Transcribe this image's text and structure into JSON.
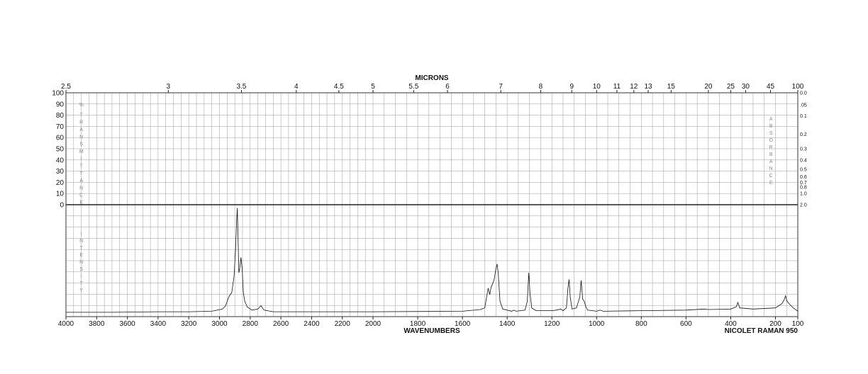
{
  "chart_data": {
    "type": "line",
    "title": "MICRONS",
    "xlabel": "WAVENUMBERS",
    "instrument": "NICOLET RAMAN 950",
    "x_range": [
      4000,
      100
    ],
    "x_ticks": [
      4000,
      3800,
      3600,
      3400,
      3200,
      3000,
      2800,
      2600,
      2400,
      2200,
      2000,
      1800,
      1600,
      1400,
      1200,
      1000,
      800,
      600,
      400,
      200,
      100
    ],
    "micron_ticks": [
      {
        "label": "2.5",
        "um": 2.5
      },
      {
        "label": "3",
        "um": 3
      },
      {
        "label": "3.5",
        "um": 3.5
      },
      {
        "label": "4",
        "um": 4
      },
      {
        "label": "4.5",
        "um": 4.5
      },
      {
        "label": "5",
        "um": 5
      },
      {
        "label": "5.5",
        "um": 5.5
      },
      {
        "label": "6",
        "um": 6
      },
      {
        "label": "7",
        "um": 7
      },
      {
        "label": "8",
        "um": 8
      },
      {
        "label": "9",
        "um": 9
      },
      {
        "label": "10",
        "um": 10
      },
      {
        "label": "11",
        "um": 11
      },
      {
        "label": "12",
        "um": 12
      },
      {
        "label": "13",
        "um": 13
      },
      {
        "label": "15",
        "um": 15
      },
      {
        "label": "20",
        "um": 20
      },
      {
        "label": "25",
        "um": 25
      },
      {
        "label": "30",
        "um": 30
      },
      {
        "label": "45",
        "um": 45
      },
      {
        "label": "100",
        "um": 100
      }
    ],
    "transmittance_ticks": [
      100,
      90,
      80,
      70,
      60,
      50,
      40,
      30,
      20,
      10,
      0
    ],
    "transmittance_label": "% TRANSMITTANCE",
    "absorbance_label": "ABSORBANCE",
    "absorbance_ticks": [
      {
        "label": "0.0",
        "a": 0.0
      },
      {
        "label": ".05",
        "a": 0.05
      },
      {
        "label": "0.1",
        "a": 0.1
      },
      {
        "label": "0.2",
        "a": 0.2
      },
      {
        "label": "0.3",
        "a": 0.3
      },
      {
        "label": "0.4",
        "a": 0.4
      },
      {
        "label": "0.5",
        "a": 0.5
      },
      {
        "label": "0.6",
        "a": 0.6
      },
      {
        "label": "0.7",
        "a": 0.7
      },
      {
        "label": "0.8",
        "a": 0.8
      },
      {
        "label": "1.0",
        "a": 1.0
      },
      {
        "label": "2.0",
        "a": 2.0
      }
    ],
    "intensity_label": "INTENSITY",
    "intensity_range": [
      0,
      100
    ],
    "series": [
      {
        "baseline": 2,
        "points": [
          [
            4000,
            2
          ],
          [
            3700,
            2
          ],
          [
            3400,
            2.5
          ],
          [
            3200,
            2.5
          ],
          [
            3050,
            3
          ],
          [
            2980,
            5
          ],
          [
            2960,
            8
          ],
          [
            2945,
            14
          ],
          [
            2935,
            17
          ],
          [
            2920,
            20
          ],
          [
            2905,
            35
          ],
          [
            2895,
            60
          ],
          [
            2888,
            85
          ],
          [
            2884,
            97
          ],
          [
            2880,
            75
          ],
          [
            2874,
            38
          ],
          [
            2868,
            42
          ],
          [
            2860,
            52
          ],
          [
            2852,
            42
          ],
          [
            2845,
            20
          ],
          [
            2835,
            12
          ],
          [
            2820,
            7
          ],
          [
            2790,
            4
          ],
          [
            2750,
            5
          ],
          [
            2730,
            8
          ],
          [
            2710,
            4
          ],
          [
            2650,
            2.5
          ],
          [
            2400,
            2.5
          ],
          [
            2000,
            2.5
          ],
          [
            1750,
            2.8
          ],
          [
            1600,
            3
          ],
          [
            1520,
            4.5
          ],
          [
            1500,
            6
          ],
          [
            1492,
            16
          ],
          [
            1485,
            24
          ],
          [
            1478,
            18
          ],
          [
            1472,
            25
          ],
          [
            1465,
            28
          ],
          [
            1458,
            32
          ],
          [
            1450,
            42
          ],
          [
            1445,
            46
          ],
          [
            1440,
            38
          ],
          [
            1432,
            12
          ],
          [
            1420,
            5
          ],
          [
            1380,
            3
          ],
          [
            1370,
            4
          ],
          [
            1360,
            3
          ],
          [
            1320,
            4
          ],
          [
            1310,
            12
          ],
          [
            1303,
            38
          ],
          [
            1298,
            20
          ],
          [
            1290,
            6
          ],
          [
            1270,
            3.5
          ],
          [
            1200,
            3.5
          ],
          [
            1180,
            4
          ],
          [
            1160,
            5
          ],
          [
            1150,
            3.5
          ],
          [
            1135,
            6
          ],
          [
            1128,
            24
          ],
          [
            1123,
            32
          ],
          [
            1118,
            16
          ],
          [
            1110,
            5
          ],
          [
            1090,
            6
          ],
          [
            1075,
            16
          ],
          [
            1069,
            31
          ],
          [
            1062,
            14
          ],
          [
            1055,
            12
          ],
          [
            1048,
            7
          ],
          [
            1040,
            4
          ],
          [
            1000,
            3
          ],
          [
            985,
            4
          ],
          [
            970,
            3
          ],
          [
            800,
            3.5
          ],
          [
            600,
            4
          ],
          [
            520,
            5
          ],
          [
            500,
            4.5
          ],
          [
            400,
            5
          ],
          [
            375,
            7
          ],
          [
            368,
            11
          ],
          [
            360,
            6
          ],
          [
            300,
            5
          ],
          [
            200,
            6
          ],
          [
            170,
            10
          ],
          [
            160,
            14
          ],
          [
            155,
            17
          ],
          [
            148,
            12
          ],
          [
            135,
            9
          ],
          [
            120,
            6
          ],
          [
            100,
            3
          ]
        ]
      }
    ]
  }
}
